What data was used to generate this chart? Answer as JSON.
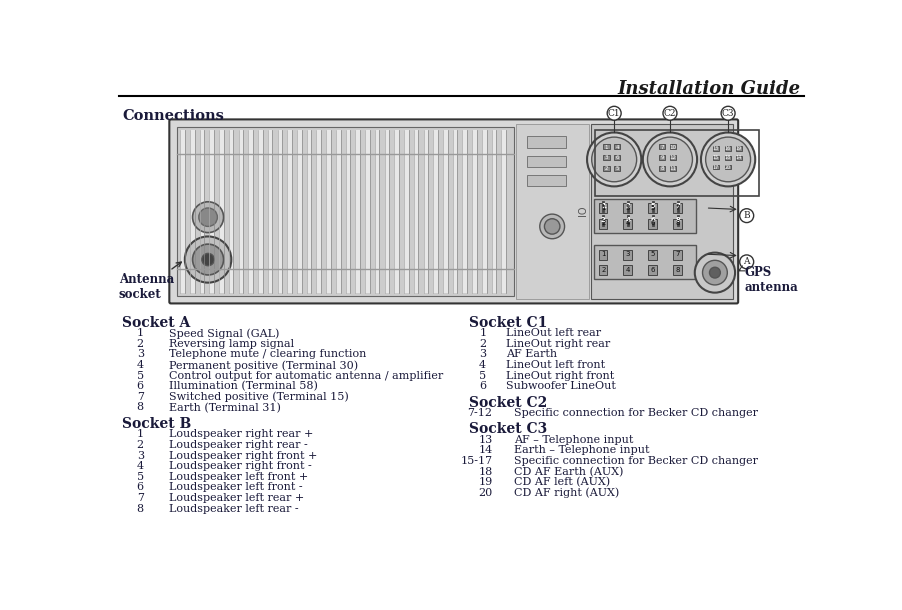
{
  "title": "Installation Guide",
  "connections_label": "Connections",
  "bg_color": "#ffffff",
  "text_color": "#1a1a3a",
  "body_color": "#e0e0e0",
  "fin_color": "#c8c8c8",
  "fin_line_color": "#999999",
  "connector_bg": "#d4d4d4",
  "socket_a_title": "Socket A",
  "socket_a_items": [
    [
      "1",
      "Speed Signal (GAL)"
    ],
    [
      "2",
      "Reversing lamp signal"
    ],
    [
      "3",
      "Telephone mute / clearing function"
    ],
    [
      "4",
      "Permanent positive (Terminal 30)"
    ],
    [
      "5",
      "Control output for automatic antenna / amplifier"
    ],
    [
      "6",
      "Illumination (Terminal 58)"
    ],
    [
      "7",
      "Switched positive (Terminal 15)"
    ],
    [
      "8",
      "Earth (Terminal 31)"
    ]
  ],
  "socket_b_title": "Socket B",
  "socket_b_items": [
    [
      "1",
      "Loudspeaker right rear +"
    ],
    [
      "2",
      "Loudspeaker right rear -"
    ],
    [
      "3",
      "Loudspeaker right front +"
    ],
    [
      "4",
      "Loudspeaker right front -"
    ],
    [
      "5",
      "Loudspeaker left front +"
    ],
    [
      "6",
      "Loudspeaker left front -"
    ],
    [
      "7",
      "Loudspeaker left rear +"
    ],
    [
      "8",
      "Loudspeaker left rear -"
    ]
  ],
  "socket_c1_title": "Socket C1",
  "socket_c1_items": [
    [
      "1",
      "LineOut left rear"
    ],
    [
      "2",
      "LineOut right rear"
    ],
    [
      "3",
      "AF Earth"
    ],
    [
      "4",
      "LineOut left front"
    ],
    [
      "5",
      "LineOut right front"
    ],
    [
      "6",
      "Subwoofer LineOut"
    ]
  ],
  "socket_c2_title": "Socket C2",
  "socket_c2_items": [
    [
      "7-12",
      "Specific connection for Becker CD changer"
    ]
  ],
  "socket_c3_title": "Socket C3",
  "socket_c3_items": [
    [
      "13",
      "AF – Telephone input"
    ],
    [
      "14",
      "Earth – Telephone input"
    ],
    [
      "15-17",
      "Specific connection for Becker CD changer"
    ],
    [
      "18",
      "CD AF Earth (AUX)"
    ],
    [
      "19",
      "CD AF left (AUX)"
    ],
    [
      "20",
      "CD AF right (AUX)"
    ]
  ],
  "antenna_label": "Antenna\nsocket",
  "gps_label": "GPS\nantenna"
}
